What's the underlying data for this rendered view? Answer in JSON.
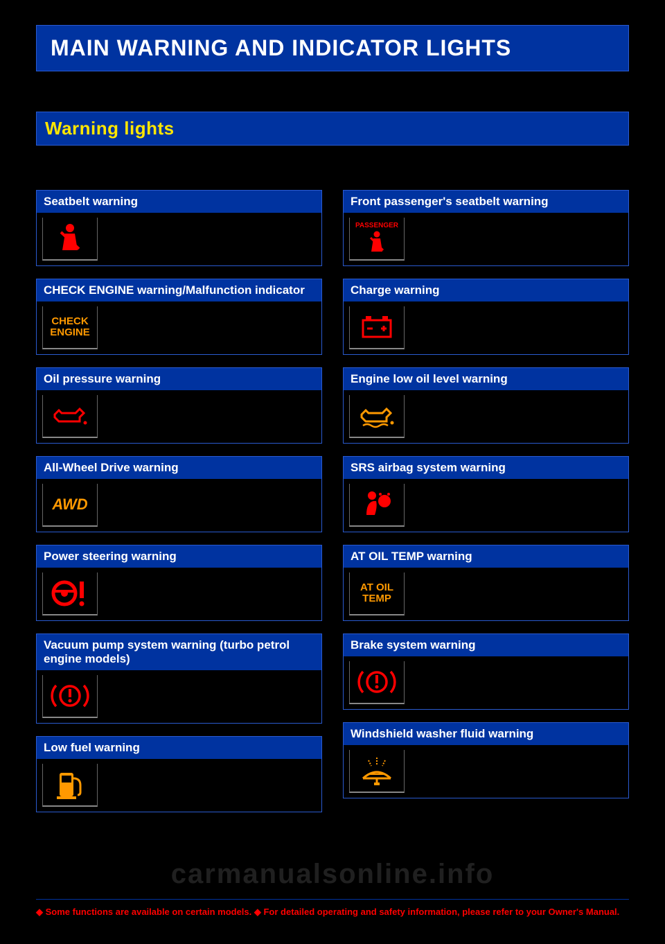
{
  "colors": {
    "page_bg": "#000000",
    "bar_bg": "#0033a0",
    "bar_border": "#2a5bd0",
    "main_title": "#ffffff",
    "section_title": "#ffe600",
    "card_header_text": "#ffffff",
    "icon_red": "#ff0000",
    "icon_amber": "#ff9900",
    "footer_text": "#ff0000",
    "watermark": "rgba(180,180,180,0.18)"
  },
  "main_title": "MAIN WARNING AND INDICATOR LIGHTS",
  "section_title": "Warning lights",
  "left": [
    {
      "label": "Seatbelt warning",
      "icon": "seatbelt",
      "color": "red"
    },
    {
      "label": "CHECK ENGINE warning/Malfunction indicator",
      "icon": "check-engine",
      "color": "amber"
    },
    {
      "label": "Oil pressure warning",
      "icon": "oil-can",
      "color": "red"
    },
    {
      "label": "All-Wheel Drive warning",
      "icon": "awd",
      "color": "amber"
    },
    {
      "label": "Power steering warning",
      "icon": "power-steering",
      "color": "red"
    },
    {
      "label": "Vacuum pump system warning (turbo petrol engine models)",
      "icon": "brake-alert",
      "color": "red"
    },
    {
      "label": "Low fuel warning",
      "icon": "fuel",
      "color": "amber"
    }
  ],
  "right": [
    {
      "label": "Front passenger's seatbelt warning",
      "icon": "passenger-seatbelt",
      "color": "red"
    },
    {
      "label": "Charge warning",
      "icon": "battery",
      "color": "red"
    },
    {
      "label": "Engine low oil level warning",
      "icon": "oil-level",
      "color": "amber"
    },
    {
      "label": "SRS airbag system warning",
      "icon": "airbag",
      "color": "red"
    },
    {
      "label": "AT OIL TEMP warning",
      "icon": "at-oil-temp",
      "color": "amber"
    },
    {
      "label": "Brake system warning",
      "icon": "brake-alert",
      "color": "red"
    },
    {
      "label": "Windshield washer fluid warning",
      "icon": "washer",
      "color": "amber"
    }
  ],
  "icon_text": {
    "check-engine": "CHECK\nENGINE",
    "awd": "AWD",
    "at-oil-temp": "AT OIL\nTEMP",
    "passenger-label": "PASSENGER"
  },
  "watermark": "carmanualsonline.info",
  "footer": "◆ Some functions are available on certain models.  ◆ For detailed operating and safety information, please refer to your Owner's Manual."
}
